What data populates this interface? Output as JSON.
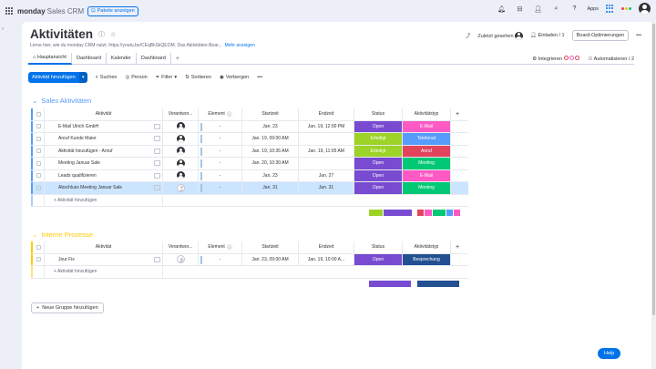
{
  "top": {
    "logo": "monday",
    "product": "Sales CRM",
    "pakete": "Pakete anzeigen",
    "apps": "Apps"
  },
  "board": {
    "title": "Aktivitäten",
    "description": "Lerne hier, wie du monday CRM nutzt. https://youtu.be/CEqBkSkQEOM. Das Aktivitäten-Boar...",
    "more_link": "Mehr anzeigen",
    "zuletzt": "Zuletzt gesehen",
    "einladen": "Einladen / 1",
    "optimierungen": "Board-Optimierungen"
  },
  "tabs": [
    {
      "label": "Hauptansicht"
    },
    {
      "label": "Dashboard"
    },
    {
      "label": "Kalender"
    },
    {
      "label": "Dashboard"
    }
  ],
  "tabs_right": {
    "integrieren": "Integrieren",
    "automatisieren": "Automatisieren / 2"
  },
  "toolbar": {
    "new_label": "Aktivität hinzufügen",
    "suchen": "Suchen",
    "person": "Person",
    "filter": "Filter",
    "sortieren": "Sortieren",
    "verbergen": "Verbergen"
  },
  "columns": {
    "name": "Aktivität",
    "ver": "Verantwor...",
    "elem": "Element",
    "start": "Startzeit",
    "end": "Endzeit",
    "status": "Status",
    "typ": "Aktivitätstyp",
    "plus": "+"
  },
  "groups": [
    {
      "title": "Sales Aktivitäten",
      "color": "#579bfc",
      "add_label": "+ Aktivität hinzufügen",
      "rows": [
        {
          "name": "E-Mail Ulrich GmbH",
          "elem": "-",
          "start": "Jan. 23",
          "end": "Jan. 19, 12:00 PM",
          "status": "Open",
          "status_color": "#784bd1",
          "typ": "E-Mail",
          "typ_color": "#ff5ac4"
        },
        {
          "name": "Anruf Kunde Maier",
          "elem": "-",
          "start": "Jan. 19, 09:00 AM",
          "end": "",
          "status": "Erledigt",
          "status_color": "#9cd326",
          "typ": "Telefonat",
          "typ_color": "#579bfc"
        },
        {
          "name": "Aktivität hinzufügen - Anruf",
          "elem": "-",
          "start": "Jan. 19, 10:35 AM",
          "end": "Jan. 19, 11:05 AM",
          "status": "Erledigt",
          "status_color": "#9cd326",
          "typ": "Anruf",
          "typ_color": "#e2445c"
        },
        {
          "name": "Meeting Januar Sale",
          "elem": "-",
          "start": "Jan. 20, 10:30 AM",
          "end": "",
          "status": "Open",
          "status_color": "#784bd1",
          "typ": "Meeting",
          "typ_color": "#00c875"
        },
        {
          "name": "Leads qualifizieren",
          "elem": "-",
          "start": "Jan. 23",
          "end": "Jan. 27",
          "status": "Open",
          "status_color": "#784bd1",
          "typ": "E-Mail",
          "typ_color": "#ff5ac4"
        },
        {
          "name": "Abschluss Meeting Januar Sale",
          "elem": "-",
          "start": "Jan. 31",
          "end": "Jan. 31",
          "status": "Open",
          "status_color": "#784bd1",
          "typ": "Meeting",
          "typ_color": "#00c875"
        }
      ],
      "status_summary": [
        {
          "color": "#9cd326",
          "share": 0.33
        },
        {
          "color": "#784bd1",
          "share": 0.67
        }
      ],
      "typ_summary": [
        {
          "color": "#e2445c",
          "share": 0.17
        },
        {
          "color": "#ff5ac4",
          "share": 0.17
        },
        {
          "color": "#00c875",
          "share": 0.33
        },
        {
          "color": "#579bfc",
          "share": 0.17
        },
        {
          "color": "#ff5ac4",
          "share": 0.16
        }
      ]
    },
    {
      "title": "Interne Prozesse",
      "color": "#ffcb00",
      "add_label": "+ Aktivität hinzufügen",
      "rows": [
        {
          "name": "Jour Fix",
          "elem": "-",
          "start": "Jan. 23, 09:00 AM",
          "end": "Jan. 19, 10:00 A...",
          "status": "Open",
          "status_color": "#784bd1",
          "typ": "Besprechung",
          "typ_color": "#225091"
        }
      ],
      "status_summary": [
        {
          "color": "#784bd1",
          "share": 1
        }
      ],
      "typ_summary": [
        {
          "color": "#225091",
          "share": 1
        }
      ]
    }
  ],
  "new_group": "Neue Gruppe hinzufügen",
  "help": "Help"
}
